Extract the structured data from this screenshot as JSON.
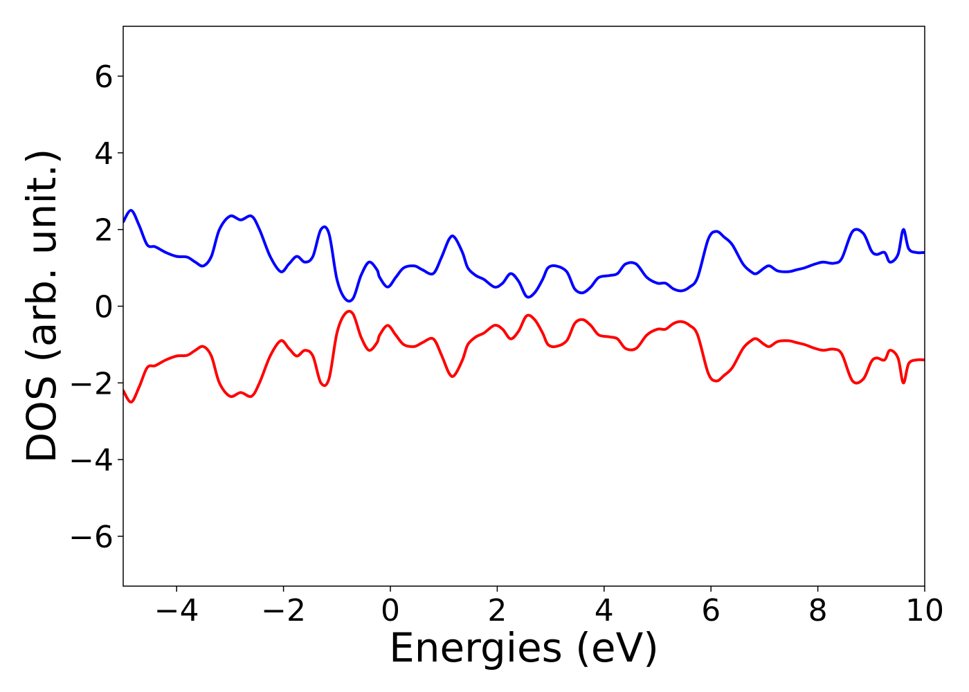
{
  "chart_data": {
    "type": "line",
    "title": "",
    "xlabel": "Energies (eV)",
    "ylabel": "DOS (arb. unit.)",
    "xlim": [
      -5,
      10
    ],
    "ylim": [
      -7.3,
      7.3
    ],
    "xticks": [
      -4,
      -2,
      0,
      2,
      4,
      6,
      8,
      10
    ],
    "xtick_labels": [
      "−4",
      "−2",
      "0",
      "2",
      "4",
      "6",
      "8",
      "10"
    ],
    "yticks": [
      -6,
      -4,
      -2,
      0,
      2,
      4,
      6
    ],
    "ytick_labels": [
      "−6",
      "−4",
      "−2",
      "0",
      "2",
      "4",
      "6"
    ],
    "grid": false,
    "legend": "none",
    "x": [
      -5.0,
      -4.85,
      -4.7,
      -4.55,
      -4.4,
      -4.2,
      -4.0,
      -3.8,
      -3.65,
      -3.5,
      -3.35,
      -3.2,
      -3.0,
      -2.8,
      -2.6,
      -2.45,
      -2.25,
      -2.05,
      -1.9,
      -1.75,
      -1.6,
      -1.45,
      -1.3,
      -1.15,
      -1.0,
      -0.85,
      -0.7,
      -0.55,
      -0.4,
      -0.25,
      -0.2,
      -0.05,
      0.1,
      0.25,
      0.45,
      0.6,
      0.8,
      0.95,
      1.1,
      1.2,
      1.35,
      1.45,
      1.6,
      1.75,
      1.95,
      2.1,
      2.25,
      2.4,
      2.55,
      2.7,
      2.85,
      2.95,
      3.1,
      3.3,
      3.45,
      3.6,
      3.75,
      3.9,
      4.1,
      4.25,
      4.4,
      4.6,
      4.8,
      5.0,
      5.15,
      5.3,
      5.45,
      5.6,
      5.75,
      5.95,
      6.1,
      6.25,
      6.4,
      6.6,
      6.75,
      6.85,
      7.0,
      7.1,
      7.25,
      7.45,
      7.6,
      7.75,
      7.95,
      8.1,
      8.3,
      8.45,
      8.65,
      8.85,
      9.0,
      9.1,
      9.25,
      9.35,
      9.5,
      9.6,
      9.7,
      9.85,
      10.0
    ],
    "series": [
      {
        "color": "#0000ff",
        "values": [
          2.2,
          2.5,
          2.1,
          1.6,
          1.55,
          1.4,
          1.3,
          1.28,
          1.15,
          1.05,
          1.3,
          2.0,
          2.35,
          2.25,
          2.35,
          2.0,
          1.3,
          0.9,
          1.1,
          1.3,
          1.15,
          1.3,
          2.0,
          1.9,
          0.7,
          0.2,
          0.2,
          0.8,
          1.15,
          0.95,
          0.75,
          0.5,
          0.75,
          1.0,
          1.05,
          0.95,
          0.85,
          1.25,
          1.75,
          1.8,
          1.4,
          1.0,
          0.8,
          0.7,
          0.5,
          0.6,
          0.85,
          0.65,
          0.25,
          0.35,
          0.7,
          1.0,
          1.05,
          0.9,
          0.45,
          0.35,
          0.5,
          0.75,
          0.8,
          0.85,
          1.1,
          1.1,
          0.75,
          0.6,
          0.6,
          0.45,
          0.4,
          0.5,
          0.75,
          1.75,
          1.95,
          1.8,
          1.6,
          1.1,
          0.9,
          0.85,
          1.0,
          1.05,
          0.92,
          0.9,
          0.95,
          1.0,
          1.1,
          1.15,
          1.12,
          1.25,
          1.95,
          1.9,
          1.45,
          1.35,
          1.4,
          1.15,
          1.35,
          2.0,
          1.5,
          1.4,
          1.4
        ]
      },
      {
        "color": "#ff0000",
        "values": [
          -2.2,
          -2.5,
          -2.1,
          -1.6,
          -1.55,
          -1.4,
          -1.3,
          -1.28,
          -1.15,
          -1.05,
          -1.3,
          -2.0,
          -2.35,
          -2.25,
          -2.35,
          -2.0,
          -1.3,
          -0.9,
          -1.1,
          -1.3,
          -1.15,
          -1.3,
          -2.0,
          -1.9,
          -0.7,
          -0.2,
          -0.2,
          -0.8,
          -1.15,
          -0.95,
          -0.75,
          -0.5,
          -0.75,
          -1.0,
          -1.05,
          -0.95,
          -0.85,
          -1.25,
          -1.75,
          -1.8,
          -1.4,
          -1.0,
          -0.8,
          -0.7,
          -0.5,
          -0.6,
          -0.85,
          -0.65,
          -0.25,
          -0.35,
          -0.7,
          -1.0,
          -1.05,
          -0.9,
          -0.45,
          -0.35,
          -0.5,
          -0.75,
          -0.8,
          -0.85,
          -1.1,
          -1.1,
          -0.75,
          -0.6,
          -0.6,
          -0.45,
          -0.4,
          -0.5,
          -0.75,
          -1.75,
          -1.95,
          -1.8,
          -1.6,
          -1.1,
          -0.9,
          -0.85,
          -1.0,
          -1.05,
          -0.92,
          -0.9,
          -0.95,
          -1.0,
          -1.1,
          -1.15,
          -1.12,
          -1.25,
          -1.95,
          -1.9,
          -1.45,
          -1.35,
          -1.4,
          -1.15,
          -1.35,
          -2.0,
          -1.5,
          -1.4,
          -1.4
        ]
      }
    ]
  }
}
